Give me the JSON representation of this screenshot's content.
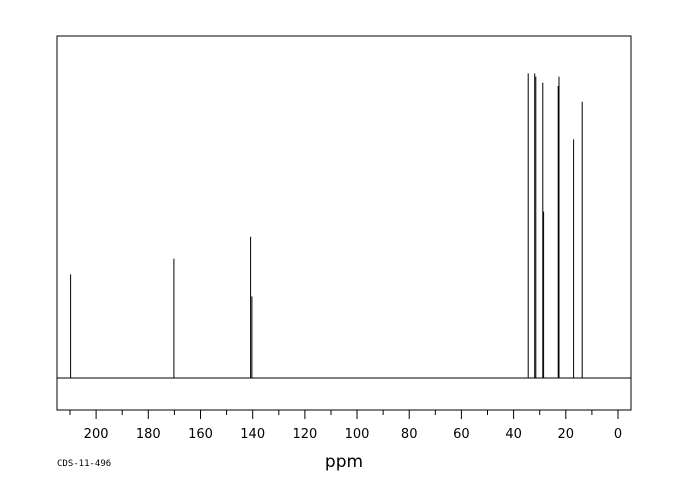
{
  "chart_data": {
    "type": "line",
    "xlabel": "ppm",
    "xlim": [
      215,
      -5
    ],
    "x_reversed": true,
    "ticks": [
      "200",
      "180",
      "160",
      "140",
      "120",
      "100",
      "80",
      "60",
      "40",
      "20",
      "0"
    ],
    "tick_values": [
      200,
      180,
      160,
      140,
      120,
      100,
      80,
      60,
      40,
      20,
      0
    ],
    "minor_tick_step": 10,
    "baseline_visible": true,
    "frame": true,
    "grid": false,
    "series": [
      {
        "peaks": [
          {
            "ppm": 209.8,
            "intensity": 0.33
          },
          {
            "ppm": 170.2,
            "intensity": 0.38
          },
          {
            "ppm": 140.8,
            "intensity": 0.45
          },
          {
            "ppm": 140.3,
            "intensity": 0.26
          },
          {
            "ppm": 34.4,
            "intensity": 0.97
          },
          {
            "ppm": 31.9,
            "intensity": 0.97
          },
          {
            "ppm": 31.5,
            "intensity": 0.96
          },
          {
            "ppm": 28.8,
            "intensity": 0.94
          },
          {
            "ppm": 28.5,
            "intensity": 0.53
          },
          {
            "ppm": 22.9,
            "intensity": 0.93
          },
          {
            "ppm": 22.6,
            "intensity": 0.96
          },
          {
            "ppm": 17.0,
            "intensity": 0.76
          },
          {
            "ppm": 13.7,
            "intensity": 0.88
          }
        ]
      }
    ]
  },
  "footer": {
    "code": "CDS-11-496"
  }
}
